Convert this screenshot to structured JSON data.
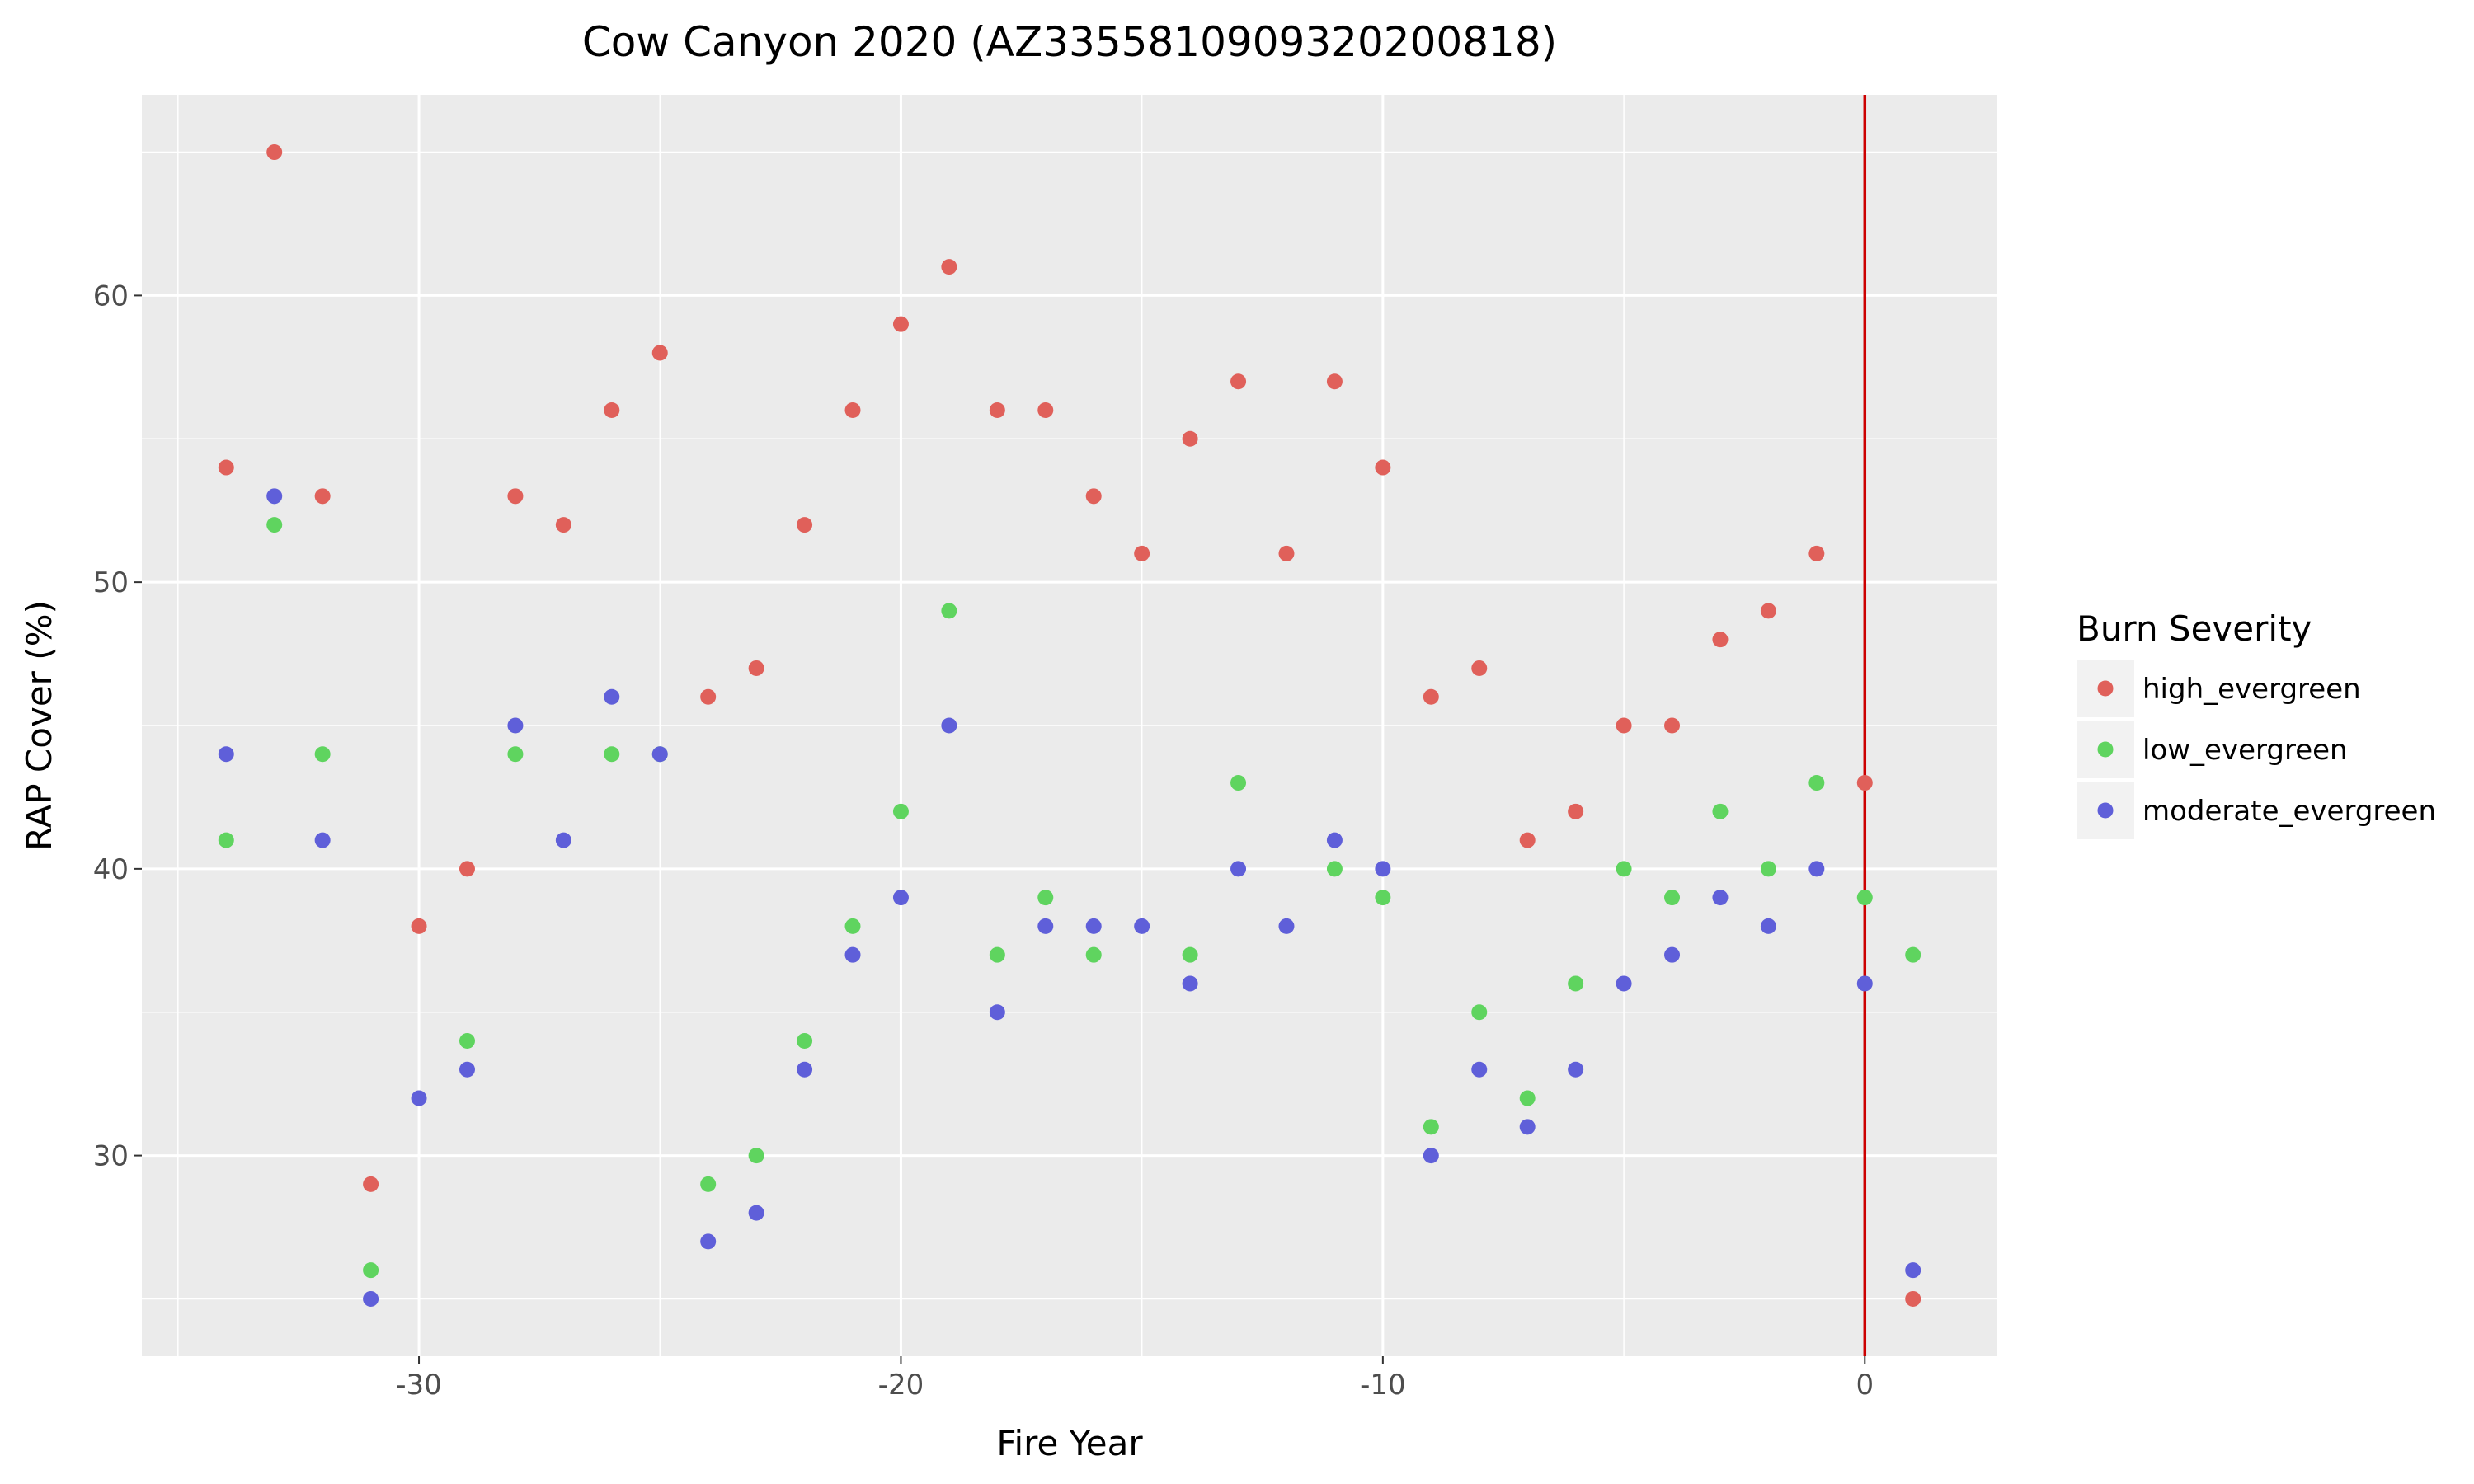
{
  "chart_data": {
    "type": "scatter",
    "title": "Cow Canyon 2020 (AZ3355810909320200818)",
    "xlabel": "Fire Year",
    "ylabel": "RAP Cover (%)",
    "xlim": [
      -35.75,
      2.75
    ],
    "ylim": [
      23.0,
      67.0
    ],
    "x_ticks": [
      -30,
      -20,
      -10,
      0
    ],
    "y_ticks": [
      30,
      40,
      50,
      60
    ],
    "grid": true,
    "background": "#ebebeb",
    "vline": {
      "x": 0,
      "color": "#cc0000"
    },
    "legend": {
      "title": "Burn Severity",
      "position": "right"
    },
    "series": [
      {
        "name": "high_evergreen",
        "color": "#e0605a",
        "points": [
          [
            -34,
            54
          ],
          [
            -33,
            65
          ],
          [
            -32,
            53
          ],
          [
            -31,
            29
          ],
          [
            -30,
            38
          ],
          [
            -29,
            40
          ],
          [
            -28,
            53
          ],
          [
            -27,
            52
          ],
          [
            -26,
            56
          ],
          [
            -25,
            58
          ],
          [
            -24,
            46
          ],
          [
            -23,
            47
          ],
          [
            -22,
            52
          ],
          [
            -21,
            56
          ],
          [
            -20,
            59
          ],
          [
            -19,
            61
          ],
          [
            -18,
            56
          ],
          [
            -17,
            56
          ],
          [
            -16,
            53
          ],
          [
            -15,
            51
          ],
          [
            -14,
            55
          ],
          [
            -13,
            57
          ],
          [
            -12,
            51
          ],
          [
            -11,
            57
          ],
          [
            -10,
            54
          ],
          [
            -9,
            46
          ],
          [
            -8,
            47
          ],
          [
            -7,
            41
          ],
          [
            -6,
            42
          ],
          [
            -5,
            45
          ],
          [
            -4,
            45
          ],
          [
            -3,
            48
          ],
          [
            -2,
            49
          ],
          [
            -1,
            51
          ],
          [
            0,
            43
          ],
          [
            1,
            25
          ]
        ]
      },
      {
        "name": "low_evergreen",
        "color": "#5fd45f",
        "points": [
          [
            -34,
            41
          ],
          [
            -33,
            52
          ],
          [
            -32,
            44
          ],
          [
            -31,
            26
          ],
          [
            -29,
            34
          ],
          [
            -28,
            44
          ],
          [
            -26,
            44
          ],
          [
            -25,
            44
          ],
          [
            -24,
            29
          ],
          [
            -23,
            30
          ],
          [
            -22,
            34
          ],
          [
            -21,
            38
          ],
          [
            -20,
            42
          ],
          [
            -19,
            49
          ],
          [
            -18,
            37
          ],
          [
            -17,
            39
          ],
          [
            -16,
            37
          ],
          [
            -14,
            37
          ],
          [
            -13,
            43
          ],
          [
            -11,
            40
          ],
          [
            -10,
            39
          ],
          [
            -9,
            31
          ],
          [
            -8,
            35
          ],
          [
            -7,
            32
          ],
          [
            -6,
            36
          ],
          [
            -5,
            40
          ],
          [
            -4,
            39
          ],
          [
            -3,
            42
          ],
          [
            -2,
            40
          ],
          [
            -1,
            43
          ],
          [
            0,
            39
          ],
          [
            1,
            37
          ]
        ]
      },
      {
        "name": "moderate_evergreen",
        "color": "#5f5fd9",
        "points": [
          [
            -34,
            44
          ],
          [
            -33,
            53
          ],
          [
            -32,
            41
          ],
          [
            -31,
            25
          ],
          [
            -30,
            32
          ],
          [
            -29,
            33
          ],
          [
            -28,
            45
          ],
          [
            -27,
            41
          ],
          [
            -26,
            46
          ],
          [
            -25,
            44
          ],
          [
            -24,
            27
          ],
          [
            -23,
            28
          ],
          [
            -22,
            33
          ],
          [
            -21,
            37
          ],
          [
            -20,
            39
          ],
          [
            -19,
            45
          ],
          [
            -18,
            35
          ],
          [
            -17,
            38
          ],
          [
            -16,
            38
          ],
          [
            -15,
            38
          ],
          [
            -14,
            36
          ],
          [
            -13,
            40
          ],
          [
            -12,
            38
          ],
          [
            -11,
            41
          ],
          [
            -10,
            40
          ],
          [
            -9,
            30
          ],
          [
            -8,
            33
          ],
          [
            -7,
            31
          ],
          [
            -6,
            33
          ],
          [
            -5,
            36
          ],
          [
            -4,
            37
          ],
          [
            -3,
            39
          ],
          [
            -2,
            38
          ],
          [
            -1,
            40
          ],
          [
            0,
            36
          ],
          [
            1,
            26
          ]
        ]
      }
    ]
  }
}
